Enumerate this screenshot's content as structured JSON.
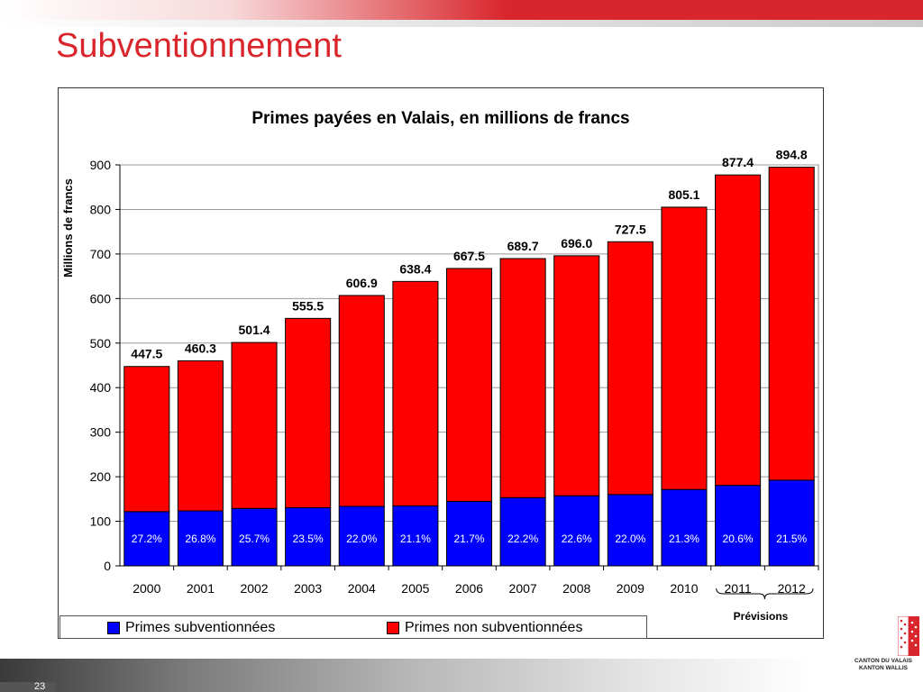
{
  "slide": {
    "title": "Subventionnement",
    "page_number": "23"
  },
  "logo": {
    "line1": "CANTON DU VALAIS",
    "line2": "KANTON WALLIS"
  },
  "colors": {
    "accent_red": "#d9262c",
    "subsidized": "#0000ff",
    "non_subsidized": "#ff0000"
  },
  "chart_data": {
    "type": "bar",
    "stacked": true,
    "title": "Primes payées en Valais, en millions de francs",
    "xlabel": "",
    "ylabel": "Millions de francs",
    "ylim": [
      0,
      900
    ],
    "yticks": [
      0,
      100,
      200,
      300,
      400,
      500,
      600,
      700,
      800,
      900
    ],
    "grid": true,
    "legend_position": "bottom",
    "categories": [
      "2000",
      "2001",
      "2002",
      "2003",
      "2004",
      "2005",
      "2006",
      "2007",
      "2008",
      "2009",
      "2010",
      "2011",
      "2012"
    ],
    "series": [
      {
        "name": "Primes subventionnées",
        "color": "#0000ff",
        "values": [
          121.7,
          123.4,
          128.9,
          130.6,
          133.5,
          134.7,
          144.8,
          153.1,
          157.3,
          160.1,
          171.5,
          180.7,
          192.4
        ]
      },
      {
        "name": "Primes non subventionnées",
        "color": "#ff0000",
        "values": [
          325.8,
          336.9,
          372.5,
          424.9,
          473.4,
          503.7,
          522.7,
          536.6,
          538.7,
          567.4,
          633.6,
          696.7,
          702.4
        ]
      }
    ],
    "totals": [
      "447.5",
      "460.3",
      "501.4",
      "555.5",
      "606.9",
      "638.4",
      "667.5",
      "689.7",
      "696.0",
      "727.5",
      "805.1",
      "877.4",
      "894.8"
    ],
    "share_labels": [
      "27.2%",
      "26.8%",
      "25.7%",
      "23.5%",
      "22.0%",
      "21.1%",
      "21.7%",
      "22.2%",
      "22.6%",
      "22.0%",
      "21.3%",
      "20.6%",
      "21.5%"
    ],
    "annotation": {
      "text": "Prévisions",
      "applies_to": [
        "2011",
        "2012"
      ]
    }
  }
}
